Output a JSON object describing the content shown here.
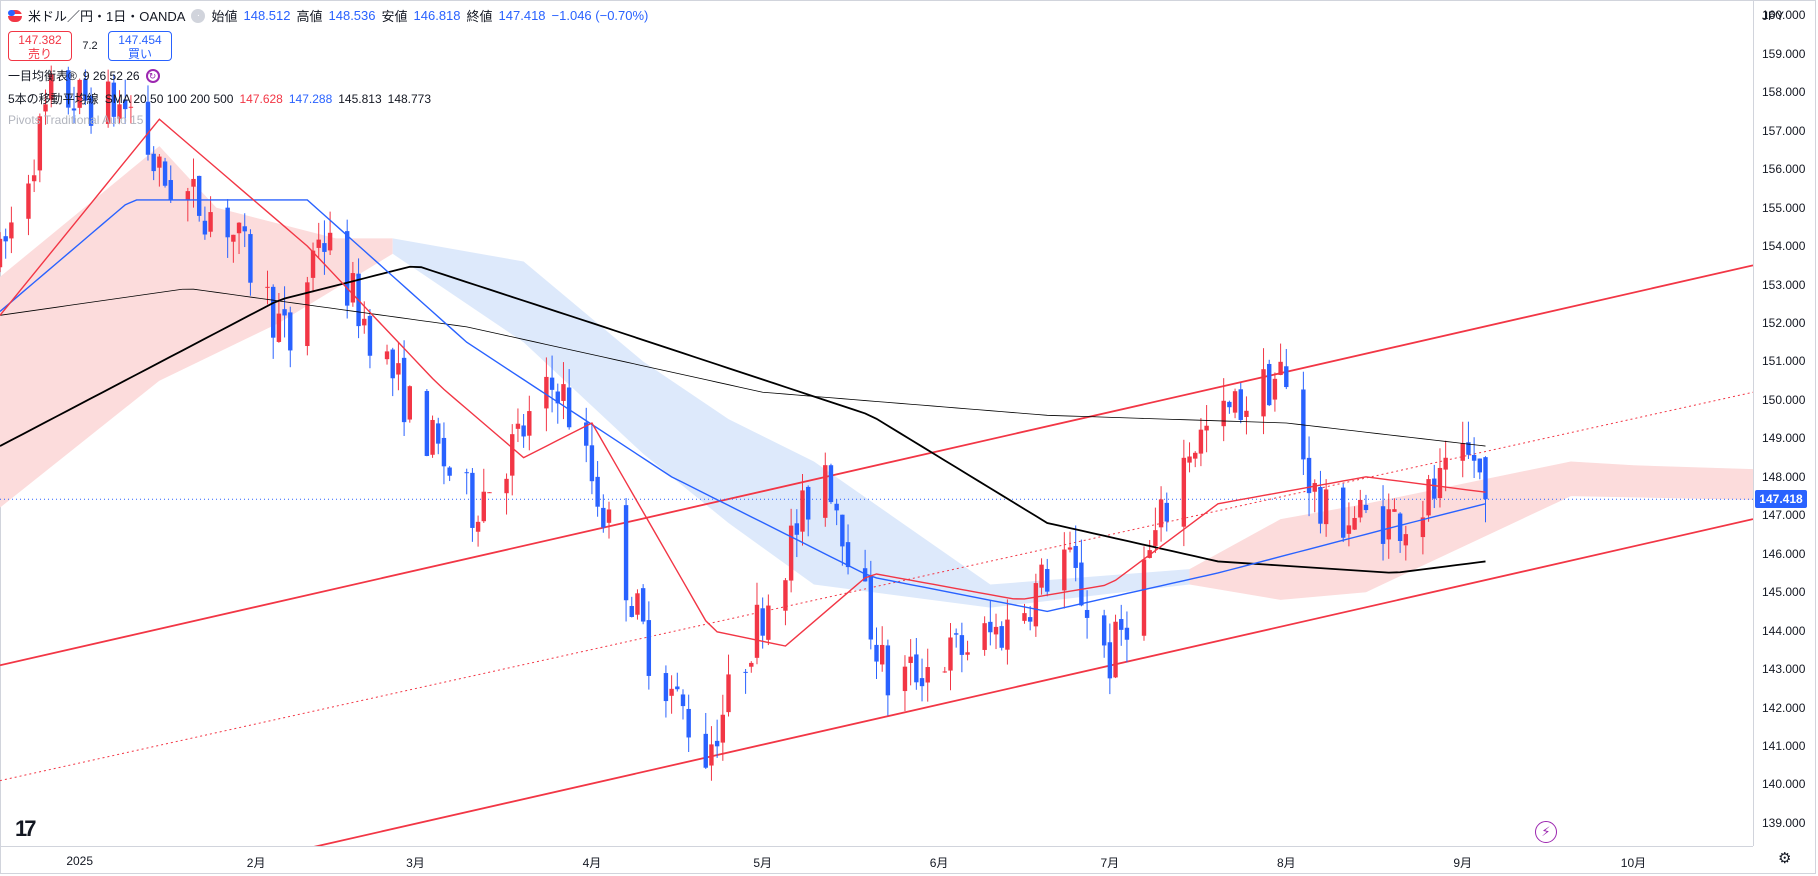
{
  "header": {
    "symbol_title": "米ドル／円・1日・OANDA",
    "open_label": "始値",
    "open_value": "148.512",
    "high_label": "高値",
    "high_value": "148.536",
    "low_label": "安値",
    "low_value": "146.818",
    "close_label": "終値",
    "close_value": "147.418",
    "change": "−1.046 (−0.70%)"
  },
  "trade": {
    "sell_price": "147.382",
    "sell_label": "売り",
    "spread": "7.2",
    "buy_price": "147.454",
    "buy_label": "買い"
  },
  "indicators": {
    "ichimoku_name": "一目均衡表®",
    "ichimoku_params": "9 26 52 26",
    "ma_name": "5本の移動平均線",
    "ma_params": "SMA 20 50 100 200 500",
    "ma_values": [
      "147.628",
      "147.288",
      "145.813",
      "148.773"
    ],
    "pivots": "Pivots Traditional Auto 15"
  },
  "price_axis": {
    "currency": "JPY",
    "labels": [
      "160.000",
      "159.000",
      "158.000",
      "157.000",
      "156.000",
      "155.000",
      "154.000",
      "153.000",
      "152.000",
      "151.000",
      "150.000",
      "149.000",
      "148.000",
      "147.000",
      "146.000",
      "145.000",
      "144.000",
      "143.000",
      "142.000",
      "141.000",
      "140.000",
      "139.000"
    ],
    "current_price": "147.418"
  },
  "time_axis": {
    "labels": [
      "2025",
      "2月",
      "3月",
      "4月",
      "5月",
      "6月",
      "7月",
      "8月",
      "9月",
      "10月"
    ]
  },
  "colors": {
    "bull": "#f23645",
    "bear": "#2962ff",
    "sma20": "#f23645",
    "sma50": "#2962ff",
    "sma100": "#000000",
    "sma200": "#000000",
    "cloud_bull": "#fcdcdc",
    "cloud_bear": "#dde9fb",
    "channel": "#f23645"
  },
  "chart_data": {
    "type": "candlestick",
    "symbol": "USDJPY",
    "timeframe": "1D",
    "ylim": [
      138.4,
      160.4
    ],
    "x_dates": [
      "2024-12-18",
      "2025-01-01",
      "2025-02-01",
      "2025-03-01",
      "2025-04-01",
      "2025-05-01",
      "2025-06-01",
      "2025-07-01",
      "2025-08-01",
      "2025-09-01",
      "2025-10-01",
      "2025-10-22"
    ],
    "last_candle": {
      "date": "2025-09-05",
      "open": 148.512,
      "high": 148.536,
      "low": 146.818,
      "close": 147.418
    },
    "ohlc_anchors": [
      {
        "date": "2024-12-18",
        "close": 153.6
      },
      {
        "date": "2024-12-27",
        "close": 157.9
      },
      {
        "date": "2025-01-10",
        "close": 157.6
      },
      {
        "date": "2025-01-15",
        "close": 155.8
      },
      {
        "date": "2025-01-27",
        "close": 154.6
      },
      {
        "date": "2025-02-07",
        "close": 151.4
      },
      {
        "date": "2025-02-12",
        "close": 154.4
      },
      {
        "date": "2025-02-28",
        "close": 149.8
      },
      {
        "date": "2025-03-11",
        "close": 147.2
      },
      {
        "date": "2025-03-26",
        "close": 150.5
      },
      {
        "date": "2025-04-04",
        "close": 146.7
      },
      {
        "date": "2025-04-11",
        "close": 143.5
      },
      {
        "date": "2025-04-21",
        "close": 140.8
      },
      {
        "date": "2025-05-02",
        "close": 144.9
      },
      {
        "date": "2025-05-12",
        "close": 148.4
      },
      {
        "date": "2025-05-23",
        "close": 142.6
      },
      {
        "date": "2025-06-13",
        "close": 144.1
      },
      {
        "date": "2025-06-23",
        "close": 146.0
      },
      {
        "date": "2025-07-01",
        "close": 143.2
      },
      {
        "date": "2025-07-15",
        "close": 148.8
      },
      {
        "date": "2025-07-31",
        "close": 150.7
      },
      {
        "date": "2025-08-07",
        "close": 147.0
      },
      {
        "date": "2025-08-22",
        "close": 146.9
      },
      {
        "date": "2025-09-03",
        "close": 148.5
      },
      {
        "date": "2025-09-05",
        "close": 147.418
      }
    ],
    "sma20_anchors": [
      [
        "2024-12-18",
        152.2
      ],
      [
        "2025-01-15",
        157.3
      ],
      [
        "2025-02-10",
        154.0
      ],
      [
        "2025-03-05",
        150.4
      ],
      [
        "2025-03-20",
        148.5
      ],
      [
        "2025-04-01",
        149.4
      ],
      [
        "2025-04-22",
        144.0
      ],
      [
        "2025-05-05",
        143.6
      ],
      [
        "2025-05-20",
        145.5
      ],
      [
        "2025-06-15",
        144.8
      ],
      [
        "2025-07-01",
        145.2
      ],
      [
        "2025-07-20",
        147.3
      ],
      [
        "2025-08-15",
        148.0
      ],
      [
        "2025-09-05",
        147.6
      ]
    ],
    "sma50_anchors": [
      [
        "2024-12-18",
        152.3
      ],
      [
        "2025-01-10",
        155.2
      ],
      [
        "2025-02-10",
        155.2
      ],
      [
        "2025-03-10",
        151.5
      ],
      [
        "2025-04-15",
        148.0
      ],
      [
        "2025-05-20",
        145.4
      ],
      [
        "2025-06-20",
        144.5
      ],
      [
        "2025-07-20",
        145.5
      ],
      [
        "2025-08-20",
        146.7
      ],
      [
        "2025-09-05",
        147.3
      ]
    ],
    "sma100_anchors": [
      [
        "2024-12-18",
        148.8
      ],
      [
        "2025-02-05",
        152.6
      ],
      [
        "2025-03-01",
        153.5
      ],
      [
        "2025-04-01",
        152.0
      ],
      [
        "2025-05-20",
        149.6
      ],
      [
        "2025-06-20",
        146.8
      ],
      [
        "2025-07-20",
        145.8
      ],
      [
        "2025-08-20",
        145.5
      ],
      [
        "2025-09-05",
        145.8
      ]
    ],
    "sma200_anchors": [
      [
        "2024-12-18",
        152.2
      ],
      [
        "2025-01-20",
        152.9
      ],
      [
        "2025-03-10",
        151.9
      ],
      [
        "2025-05-01",
        150.2
      ],
      [
        "2025-06-20",
        149.6
      ],
      [
        "2025-08-01",
        149.4
      ],
      [
        "2025-09-05",
        148.8
      ]
    ],
    "channel": {
      "upper": [
        [
          "2024-12-18",
          143.1
        ],
        [
          "2025-10-22",
          153.5
        ]
      ],
      "middle": [
        [
          "2024-12-18",
          140.1
        ],
        [
          "2025-10-22",
          150.2
        ]
      ],
      "lower": [
        [
          "2025-01-28",
          137.9
        ],
        [
          "2025-10-22",
          146.9
        ]
      ]
    }
  }
}
